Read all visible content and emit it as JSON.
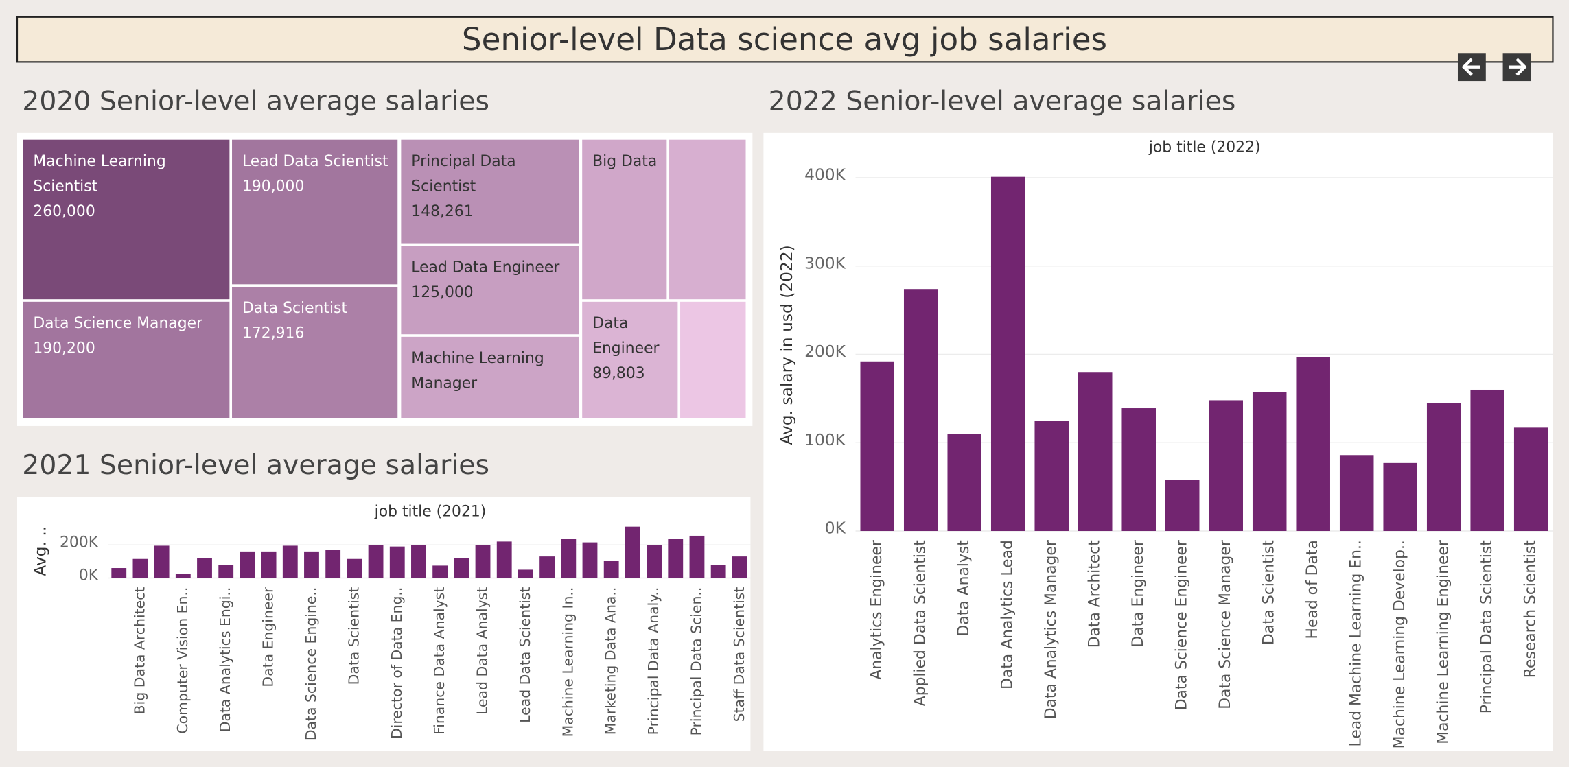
{
  "header": {
    "title": "Senior-level Data science avg job salaries"
  },
  "chart_data": [
    {
      "type": "treemap",
      "title": "2020 Senior-level average salaries",
      "categories": [
        "Machine Learning Scientist",
        "Data Science Manager",
        "Lead Data Scientist",
        "Data Scientist",
        "Principal Data Scientist",
        "Lead Data Engineer",
        "Machine Learning Manager",
        "Big Data",
        null,
        "Data Engineer",
        null
      ],
      "values": [
        260000,
        190200,
        190000,
        172916,
        148261,
        125000,
        116000,
        110000,
        98000,
        89803,
        61000
      ],
      "value_labels": [
        "260,000",
        "190,200",
        "190,000",
        "172,916",
        "148,261",
        "125,000",
        null,
        null,
        null,
        "89,803",
        null
      ],
      "color_range": [
        "#ecc6e4",
        "#7a4a78"
      ]
    },
    {
      "type": "bar",
      "title": "2021 Senior-level average salaries",
      "xlabel": "job title (2021)",
      "ylabel": "Avg. ..",
      "categories": [
        null,
        "Big Data Architect",
        null,
        "Computer Vision En..",
        null,
        "Data Analytics Engi..",
        null,
        "Data Engineer",
        null,
        "Data Science Engine..",
        null,
        "Data Scientist",
        null,
        "Director of Data Eng..",
        null,
        "Finance Data Analyst",
        null,
        "Lead Data Analyst",
        null,
        "Lead Data Scientist",
        null,
        "Machine Learning In..",
        null,
        "Marketing Data Ana..",
        null,
        "Principal Data Analy..",
        null,
        "Principal Data Scien..",
        null,
        "Staff Data Scientist"
      ],
      "values": [
        60000,
        115000,
        195000,
        25000,
        120000,
        80000,
        160000,
        160000,
        195000,
        160000,
        170000,
        115000,
        200000,
        190000,
        200000,
        75000,
        120000,
        200000,
        220000,
        50000,
        130000,
        235000,
        215000,
        105000,
        310000,
        200000,
        235000,
        255000,
        80000,
        130000
      ],
      "color": "#722570",
      "ylim": [
        0,
        320000
      ],
      "yticks": [
        {
          "value": 0,
          "label": "0K"
        },
        {
          "value": 200000,
          "label": "200K"
        }
      ],
      "grid": true
    },
    {
      "type": "bar",
      "title": "2022 Senior-level average salaries",
      "xlabel": "job title (2022)",
      "ylabel": "Avg. salary in usd (2022)",
      "categories": [
        "Analytics Engineer",
        "Applied Data Scientist",
        "Data Analyst",
        "Data Analytics Lead",
        "Data Analytics Manager",
        "Data Architect",
        "Data Engineer",
        "Data Science Engineer",
        "Data Science Manager",
        "Data Scientist",
        "Head of Data",
        "Lead Machine Learning En..",
        "Machine Learning Develop..",
        "Machine Learning Engineer",
        "Principal Data Scientist",
        "Research Scientist"
      ],
      "values": [
        192000,
        274000,
        110000,
        401000,
        125000,
        180000,
        139000,
        58000,
        148000,
        157000,
        197000,
        86000,
        77000,
        145000,
        160000,
        117000
      ],
      "color": "#722570",
      "ylim": [
        0,
        420000
      ],
      "yticks": [
        {
          "value": 0,
          "label": "0K"
        },
        {
          "value": 100000,
          "label": "100K"
        },
        {
          "value": 200000,
          "label": "200K"
        },
        {
          "value": 300000,
          "label": "300K"
        },
        {
          "value": 400000,
          "label": "400K"
        }
      ],
      "grid": true
    }
  ]
}
